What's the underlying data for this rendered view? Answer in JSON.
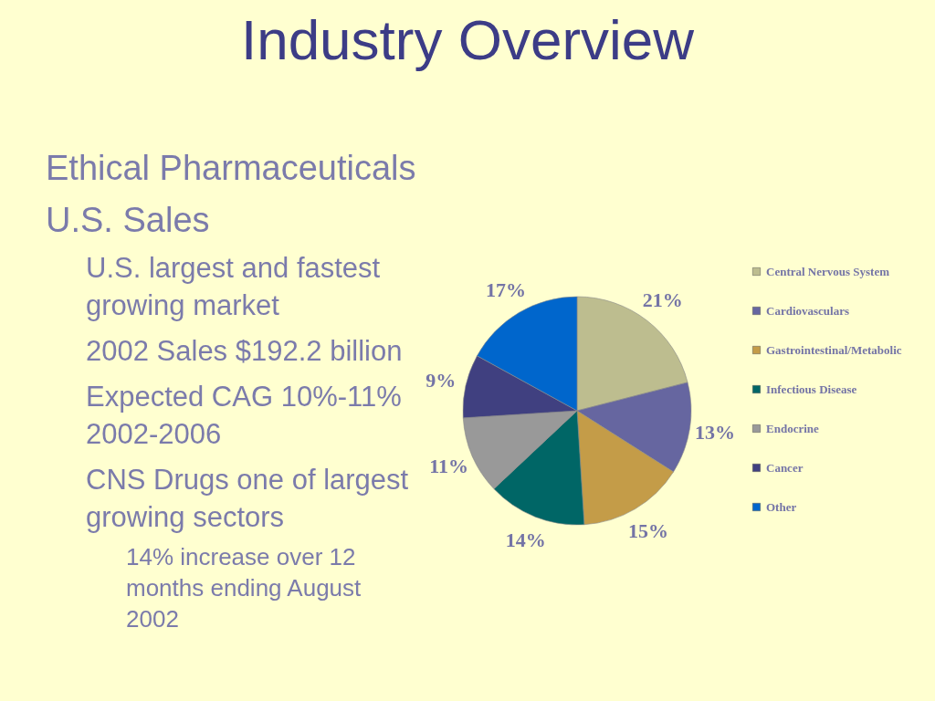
{
  "chart_data": {
    "type": "pie",
    "title": "Industry Overview",
    "categories": [
      "Central Nervous System",
      "Cardiovasculars",
      "Gastrointestinal/Metabolic",
      "Infectious Disease",
      "Endocrine",
      "Cancer",
      "Other"
    ],
    "values": [
      21,
      13,
      15,
      14,
      11,
      9,
      17
    ],
    "colors": [
      "#bdbd8f",
      "#6666a0",
      "#c49c48",
      "#006666",
      "#999999",
      "#404080",
      "#0066cc"
    ],
    "value_labels": [
      "21%",
      "13%",
      "15%",
      "14%",
      "11%",
      "9%",
      "17%"
    ],
    "legend": "right",
    "annotations": [
      "Ethical Pharmaceuticals",
      "U.S. Sales",
      "U.S. largest and fastest growing market",
      "2002 Sales $192.2 billion",
      "Expected CAG 10%-11% 2002-2006",
      "CNS Drugs one of largest growing sectors",
      "14% increase over 12 months ending August 2002"
    ]
  }
}
